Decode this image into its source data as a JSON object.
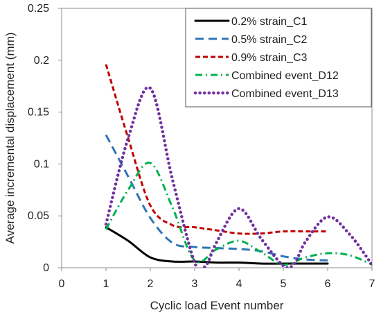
{
  "chart_data": {
    "type": "line",
    "title": "",
    "xlabel": "Cyclic load Event number",
    "ylabel": "Average incremental displacement (mm)",
    "xlim": [
      0,
      7
    ],
    "ylim": [
      0,
      0.25
    ],
    "xticks": [
      "0",
      "1",
      "2",
      "3",
      "4",
      "5",
      "6",
      "7"
    ],
    "yticks": [
      "0",
      "0.05",
      "0.1",
      "0.15",
      "0.2",
      "0.25"
    ],
    "grid": false,
    "legend_position": "top-right",
    "series": [
      {
        "name": "0.2% strain_C1",
        "color": "#000000",
        "dash": "solid",
        "x": [
          1,
          1.5,
          2,
          2.5,
          3,
          3.5,
          4,
          4.5,
          5,
          5.5,
          6
        ],
        "y": [
          0.039,
          0.026,
          0.01,
          0.006,
          0.006,
          0.005,
          0.005,
          0.004,
          0.004,
          0.004,
          0.004
        ]
      },
      {
        "name": "0.5% strain_C2",
        "color": "#2E75B6",
        "dash": "long-dash",
        "x": [
          1,
          1.5,
          2,
          2.5,
          3,
          3.5,
          4,
          4.5,
          5,
          5.5,
          6
        ],
        "y": [
          0.128,
          0.088,
          0.048,
          0.024,
          0.02,
          0.019,
          0.018,
          0.016,
          0.011,
          0.008,
          0.007
        ]
      },
      {
        "name": "0.9% strain_C3",
        "color": "#C00000",
        "dash": "short-dash",
        "x": [
          1,
          1.5,
          2,
          2.5,
          3,
          3.5,
          4,
          4.5,
          5,
          5.5,
          6
        ],
        "y": [
          0.196,
          0.125,
          0.06,
          0.041,
          0.039,
          0.036,
          0.033,
          0.033,
          0.035,
          0.035,
          0.035
        ]
      },
      {
        "name": "Combined event_D12",
        "color": "#00B050",
        "dash": "dash-dot",
        "x": [
          1,
          1.5,
          2,
          2.5,
          3,
          3.5,
          4,
          4.5,
          5,
          5.5,
          6,
          6.5,
          7
        ],
        "y": [
          0.037,
          0.075,
          0.101,
          0.058,
          0.007,
          0.018,
          0.026,
          0.015,
          0.003,
          0.01,
          0.014,
          0.012,
          0.003
        ]
      },
      {
        "name": "Combined event_D13",
        "color": "#7030A0",
        "dash": "dotted",
        "x": [
          1,
          1.5,
          2,
          2.5,
          3,
          3.25,
          3.5,
          4,
          4.5,
          5,
          5.25,
          5.5,
          6,
          6.5,
          7
        ],
        "y": [
          0.042,
          0.125,
          0.173,
          0.085,
          0.005,
          0.002,
          0.025,
          0.057,
          0.028,
          0.002,
          0.004,
          0.025,
          0.049,
          0.032,
          0.003
        ]
      }
    ]
  }
}
